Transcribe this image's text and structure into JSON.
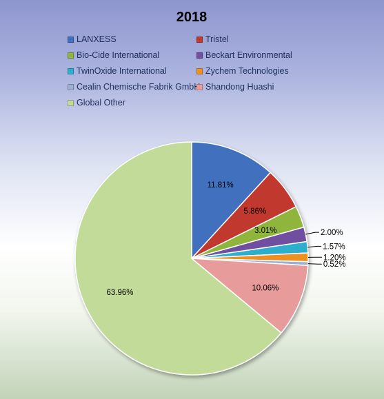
{
  "chart_data": {
    "type": "pie",
    "title": "2018",
    "legend_position": "top",
    "categories": [
      "LANXESS",
      "Tristel",
      "Bio-Cide International",
      "Beckart Environmental",
      "TwinOxide International",
      "Zychem Technologies",
      "Cealin Chemische Fabrik GmbH",
      "Shandong Huashi",
      "Global Other"
    ],
    "values": [
      11.81,
      5.86,
      3.01,
      2.0,
      1.57,
      1.2,
      0.52,
      10.06,
      63.96
    ],
    "labels": [
      "11.81%",
      "5.86%",
      "3.01%",
      "2.00%",
      "1.57%",
      "1.20%",
      "0.52%",
      "10.06%",
      "63.96%"
    ],
    "colors": [
      "#3f6fbe",
      "#c0392f",
      "#8fb53c",
      "#7150a0",
      "#2faecd",
      "#ee8f21",
      "#9bb0d2",
      "#e79b9a",
      "#c2db98"
    ]
  }
}
